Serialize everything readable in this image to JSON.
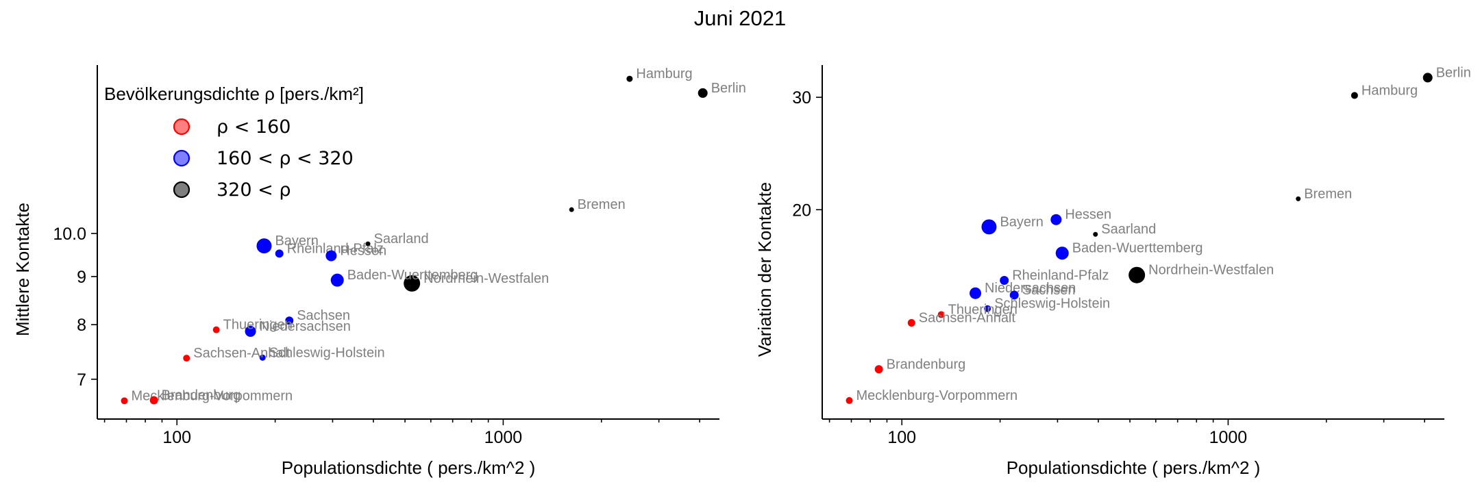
{
  "figure": {
    "title": "Juni 2021"
  },
  "legend": {
    "title": "Bevölkerungsdichte ρ [pers./km²]",
    "entries": [
      {
        "label": "ρ < 160",
        "color": "#ff0000"
      },
      {
        "label": "160 < ρ < 320",
        "color": "#0000ff"
      },
      {
        "label": "320 < ρ",
        "color": "#000000"
      }
    ]
  },
  "colors": {
    "low": "#ff0000",
    "mid": "#0000ff",
    "high": "#000000",
    "label": "#7f7f7f"
  },
  "chart_data": [
    {
      "type": "scatter",
      "xscale": "log",
      "yscale": "log",
      "xlabel": "Populationsdichte ( pers./km^2 )",
      "ylabel": "Mittlere Kontakte",
      "xlim": [
        57,
        4600
      ],
      "ylim": [
        6.35,
        15.1
      ],
      "xticks": [
        {
          "v": 100,
          "label": "100"
        },
        {
          "v": 1000,
          "label": "1000"
        }
      ],
      "yticks": [
        {
          "v": 7,
          "label": "7"
        },
        {
          "v": 8,
          "label": "8"
        },
        {
          "v": 9,
          "label": "9"
        },
        {
          "v": 10,
          "label": "10.0"
        }
      ],
      "points": [
        {
          "label": "Hamburg",
          "x": 2440,
          "y": 14.6,
          "density_class": "high",
          "size": 4.5
        },
        {
          "label": "Berlin",
          "x": 4090,
          "y": 14.1,
          "density_class": "high",
          "size": 7
        },
        {
          "label": "Bremen",
          "x": 1620,
          "y": 10.6,
          "density_class": "high",
          "size": 3.5
        },
        {
          "label": "Saarland",
          "x": 385,
          "y": 9.75,
          "density_class": "high",
          "size": 3.5
        },
        {
          "label": "Nordrhein-Westfalen",
          "x": 525,
          "y": 8.85,
          "density_class": "high",
          "size": 12
        },
        {
          "label": "Bayern",
          "x": 185,
          "y": 9.7,
          "density_class": "mid",
          "size": 11
        },
        {
          "label": "Rheinland-Pfalz",
          "x": 206,
          "y": 9.52,
          "density_class": "mid",
          "size": 6
        },
        {
          "label": "Hessen",
          "x": 297,
          "y": 9.47,
          "density_class": "mid",
          "size": 8
        },
        {
          "label": "Baden-Wuerttemberg",
          "x": 310,
          "y": 8.92,
          "density_class": "mid",
          "size": 9.5
        },
        {
          "label": "Sachsen",
          "x": 221,
          "y": 8.08,
          "density_class": "mid",
          "size": 6
        },
        {
          "label": "Niedersachsen",
          "x": 168,
          "y": 7.87,
          "density_class": "mid",
          "size": 8
        },
        {
          "label": "Schleswig-Holstein",
          "x": 183,
          "y": 7.38,
          "density_class": "mid",
          "size": 4.5
        },
        {
          "label": "Thueringen",
          "x": 132,
          "y": 7.9,
          "density_class": "low",
          "size": 5
        },
        {
          "label": "Sachsen-Anhalt",
          "x": 107,
          "y": 7.37,
          "density_class": "low",
          "size": 5
        },
        {
          "label": "Mecklenburg-Vorpommern",
          "x": 69,
          "y": 6.64,
          "density_class": "low",
          "size": 5
        },
        {
          "label": "Brandenburg",
          "x": 85,
          "y": 6.65,
          "density_class": "low",
          "size": 6
        }
      ]
    },
    {
      "type": "scatter",
      "xscale": "log",
      "yscale": "log",
      "xlabel": "Populationsdichte ( pers./km^2 )",
      "ylabel": "Variation der Kontakte",
      "xlim": [
        57,
        4600
      ],
      "ylim": [
        9.4,
        33.7
      ],
      "xticks": [
        {
          "v": 100,
          "label": "100"
        },
        {
          "v": 1000,
          "label": "1000"
        }
      ],
      "yticks": [
        {
          "v": 20,
          "label": "20"
        },
        {
          "v": 30,
          "label": "30"
        }
      ],
      "points": [
        {
          "label": "Berlin",
          "x": 4090,
          "y": 32.2,
          "density_class": "high",
          "size": 7
        },
        {
          "label": "Hamburg",
          "x": 2440,
          "y": 30.2,
          "density_class": "high",
          "size": 5
        },
        {
          "label": "Bremen",
          "x": 1640,
          "y": 20.8,
          "density_class": "high",
          "size": 3.5
        },
        {
          "label": "Saarland",
          "x": 392,
          "y": 18.3,
          "density_class": "high",
          "size": 3.5
        },
        {
          "label": "Nordrhein-Westfalen",
          "x": 525,
          "y": 15.8,
          "density_class": "high",
          "size": 12
        },
        {
          "label": "Hessen",
          "x": 297,
          "y": 19.3,
          "density_class": "mid",
          "size": 8
        },
        {
          "label": "Bayern",
          "x": 185,
          "y": 18.8,
          "density_class": "mid",
          "size": 11
        },
        {
          "label": "Baden-Wuerttemberg",
          "x": 310,
          "y": 17.1,
          "density_class": "mid",
          "size": 9.5
        },
        {
          "label": "Rheinland-Pfalz",
          "x": 206,
          "y": 15.5,
          "density_class": "mid",
          "size": 6.5
        },
        {
          "label": "Niedersachsen",
          "x": 168,
          "y": 14.8,
          "density_class": "mid",
          "size": 8.5
        },
        {
          "label": "Sachsen",
          "x": 221,
          "y": 14.7,
          "density_class": "mid",
          "size": 6.5
        },
        {
          "label": "Schleswig-Holstein",
          "x": 183,
          "y": 14.0,
          "density_class": "mid",
          "size": 5
        },
        {
          "label": "Thueringen",
          "x": 132,
          "y": 13.7,
          "density_class": "low",
          "size": 5
        },
        {
          "label": "Sachsen-Anhalt",
          "x": 107,
          "y": 13.3,
          "density_class": "low",
          "size": 5.5
        },
        {
          "label": "Brandenburg",
          "x": 85,
          "y": 11.25,
          "density_class": "low",
          "size": 6
        },
        {
          "label": "Mecklenburg-Vorpommern",
          "x": 69,
          "y": 10.05,
          "density_class": "low",
          "size": 5
        }
      ]
    }
  ]
}
